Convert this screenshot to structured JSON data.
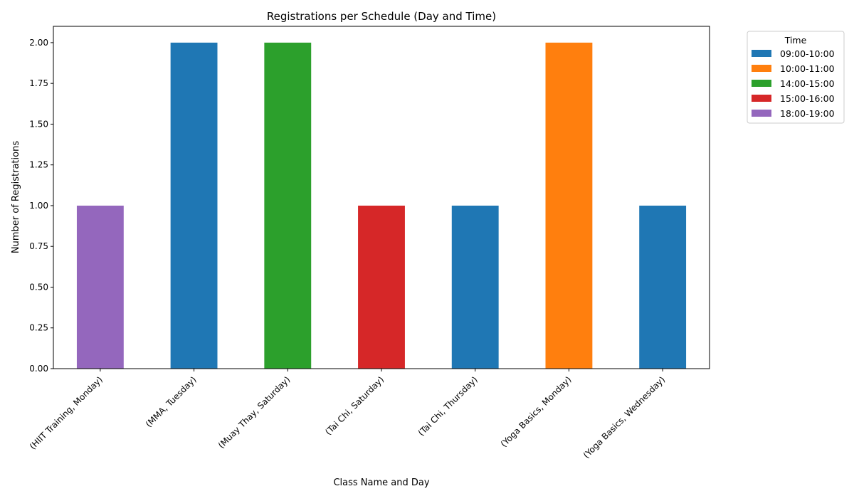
{
  "chart_data": {
    "type": "bar",
    "stacked": true,
    "title": "Registrations per Schedule (Day and Time)",
    "xlabel": "Class Name and Day",
    "ylabel": "Number of Registrations",
    "ylim": [
      0,
      2.1
    ],
    "yticks": [
      0.0,
      0.25,
      0.5,
      0.75,
      1.0,
      1.25,
      1.5,
      1.75,
      2.0
    ],
    "ytick_labels": [
      "0.00",
      "0.25",
      "0.50",
      "0.75",
      "1.00",
      "1.25",
      "1.50",
      "1.75",
      "2.00"
    ],
    "grid": false,
    "categories": [
      "(HIIT Training, Monday)",
      "(MMA, Tuesday)",
      "(Muay Thay, Saturday)",
      "(Tai Chi, Saturday)",
      "(Tai Chi, Thursday)",
      "(Yoga Basics, Monday)",
      "(Yoga Basics, Wednesday)"
    ],
    "legend": {
      "title": "Time",
      "placement": "outside-top-right"
    },
    "series": [
      {
        "name": "09:00-10:00",
        "color": "#1f77b4",
        "values": [
          0,
          2,
          0,
          0,
          1,
          0,
          1
        ]
      },
      {
        "name": "10:00-11:00",
        "color": "#ff7f0e",
        "values": [
          0,
          0,
          0,
          0,
          0,
          2,
          0
        ]
      },
      {
        "name": "14:00-15:00",
        "color": "#2ca02c",
        "values": [
          0,
          0,
          2,
          0,
          0,
          0,
          0
        ]
      },
      {
        "name": "15:00-16:00",
        "color": "#d62728",
        "values": [
          0,
          0,
          0,
          1,
          0,
          0,
          0
        ]
      },
      {
        "name": "18:00-19:00",
        "color": "#9467bd",
        "values": [
          1,
          0,
          0,
          0,
          0,
          0,
          0
        ]
      }
    ]
  }
}
